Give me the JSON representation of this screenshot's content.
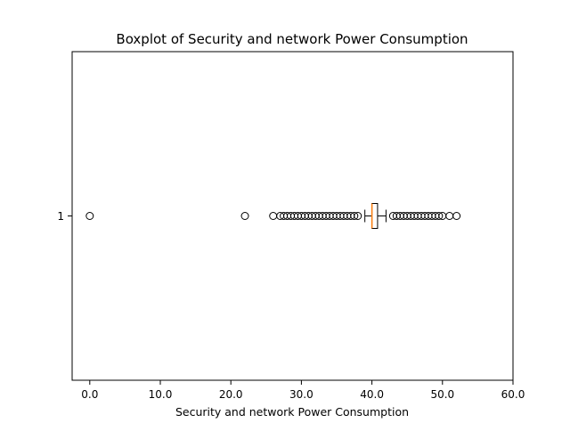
{
  "chart_data": {
    "type": "boxplot",
    "orientation": "horizontal",
    "title": "Boxplot of Security and network Power Consumption",
    "xlabel": "Security and network Power Consumption",
    "ylabel": "",
    "xlim": [
      -2.5,
      60
    ],
    "x_ticks": [
      0,
      10,
      20,
      30,
      40,
      50,
      60
    ],
    "x_tick_labels": [
      "0.0",
      "10.0",
      "20.0",
      "30.0",
      "40.0",
      "50.0",
      "60.0"
    ],
    "categories": [
      "1"
    ],
    "grid": false,
    "boxes": [
      {
        "category": "1",
        "whisker_low": 39.0,
        "q1": 40.0,
        "median": 40.0,
        "q3": 40.8,
        "whisker_high": 42.0,
        "outliers": [
          0.0,
          22.0,
          26.0,
          27.0,
          27.5,
          28.0,
          28.5,
          29.0,
          29.5,
          30.0,
          30.5,
          31.0,
          31.5,
          32.0,
          32.5,
          33.0,
          33.5,
          34.0,
          34.5,
          35.0,
          35.5,
          36.0,
          36.5,
          37.0,
          37.5,
          38.0,
          43.0,
          43.5,
          44.0,
          44.5,
          45.0,
          45.5,
          46.0,
          46.5,
          47.0,
          47.5,
          48.0,
          48.5,
          49.0,
          49.5,
          50.0,
          51.0,
          52.0
        ]
      }
    ],
    "colors": {
      "box": "#000000",
      "median": "#ff7f0e",
      "outlier_edge": "#000000"
    }
  }
}
